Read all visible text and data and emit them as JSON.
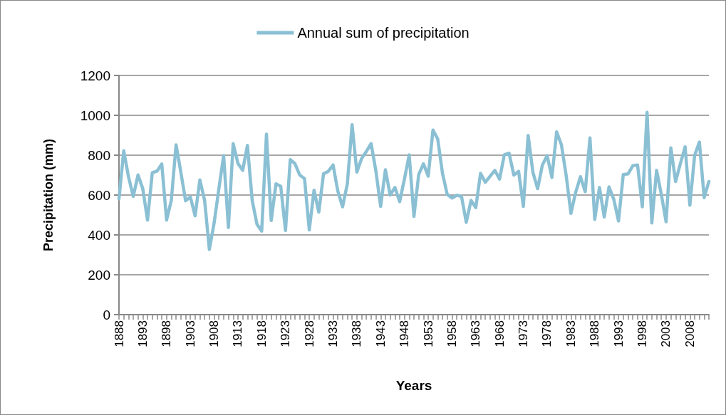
{
  "chart_data": {
    "type": "line",
    "xlabel": "Years",
    "ylabel": "Precipitation (mm)",
    "categories": [
      "1888",
      null,
      null,
      null,
      null,
      "1893",
      null,
      null,
      null,
      null,
      "1898",
      null,
      null,
      null,
      null,
      "1903",
      null,
      null,
      null,
      null,
      "1908",
      null,
      null,
      null,
      null,
      "1913",
      null,
      null,
      null,
      null,
      "1918",
      null,
      null,
      null,
      null,
      "1923",
      null,
      null,
      null,
      null,
      "1928",
      null,
      null,
      null,
      null,
      "1933",
      null,
      null,
      null,
      null,
      "1938",
      null,
      null,
      null,
      null,
      "1943",
      null,
      null,
      null,
      null,
      "1948",
      null,
      null,
      null,
      null,
      "1953",
      null,
      null,
      null,
      null,
      "1958",
      null,
      null,
      null,
      null,
      "1963",
      null,
      null,
      null,
      null,
      "1968",
      null,
      null,
      null,
      null,
      "1973",
      null,
      null,
      null,
      null,
      "1978",
      null,
      null,
      null,
      null,
      "1983",
      null,
      null,
      null,
      null,
      "1988",
      null,
      null,
      null,
      null,
      "1993",
      null,
      null,
      null,
      null,
      "1998",
      null,
      null,
      null,
      null,
      "2003",
      null,
      null,
      null,
      null,
      "2008",
      null,
      null,
      null,
      null
    ],
    "series": [
      {
        "name": "Annual sum of precipitation",
        "color": "#8bc0d4",
        "values": [
          581,
          822,
          692,
          593,
          701,
          632,
          474,
          712,
          720,
          756,
          474,
          573,
          852,
          715,
          571,
          591,
          496,
          676,
          573,
          327,
          460,
          632,
          798,
          437,
          858,
          759,
          724,
          849,
          573,
          454,
          419,
          905,
          472,
          656,
          644,
          422,
          778,
          757,
          700,
          683,
          425,
          624,
          514,
          707,
          719,
          751,
          620,
          541,
          656,
          953,
          715,
          783,
          819,
          858,
          721,
          543,
          727,
          600,
          638,
          567,
          680,
          802,
          493,
          703,
          757,
          695,
          926,
          881,
          709,
          603,
          585,
          599,
          593,
          463,
          573,
          537,
          709,
          664,
          694,
          724,
          680,
          802,
          810,
          700,
          719,
          543,
          899,
          715,
          632,
          751,
          798,
          688,
          917,
          852,
          698,
          508,
          614,
          692,
          617,
          887,
          478,
          638,
          490,
          641,
          579,
          470,
          703,
          706,
          747,
          751,
          541,
          1015,
          460,
          724,
          603,
          466,
          837,
          668,
          757,
          842,
          549,
          798,
          866,
          587,
          668
        ]
      }
    ],
    "ylim": [
      0,
      1200
    ],
    "yticks": [
      0,
      200,
      400,
      600,
      800,
      1000,
      1200
    ],
    "grid": "y",
    "legend": "top",
    "marker": "none",
    "line_style": "solid"
  }
}
